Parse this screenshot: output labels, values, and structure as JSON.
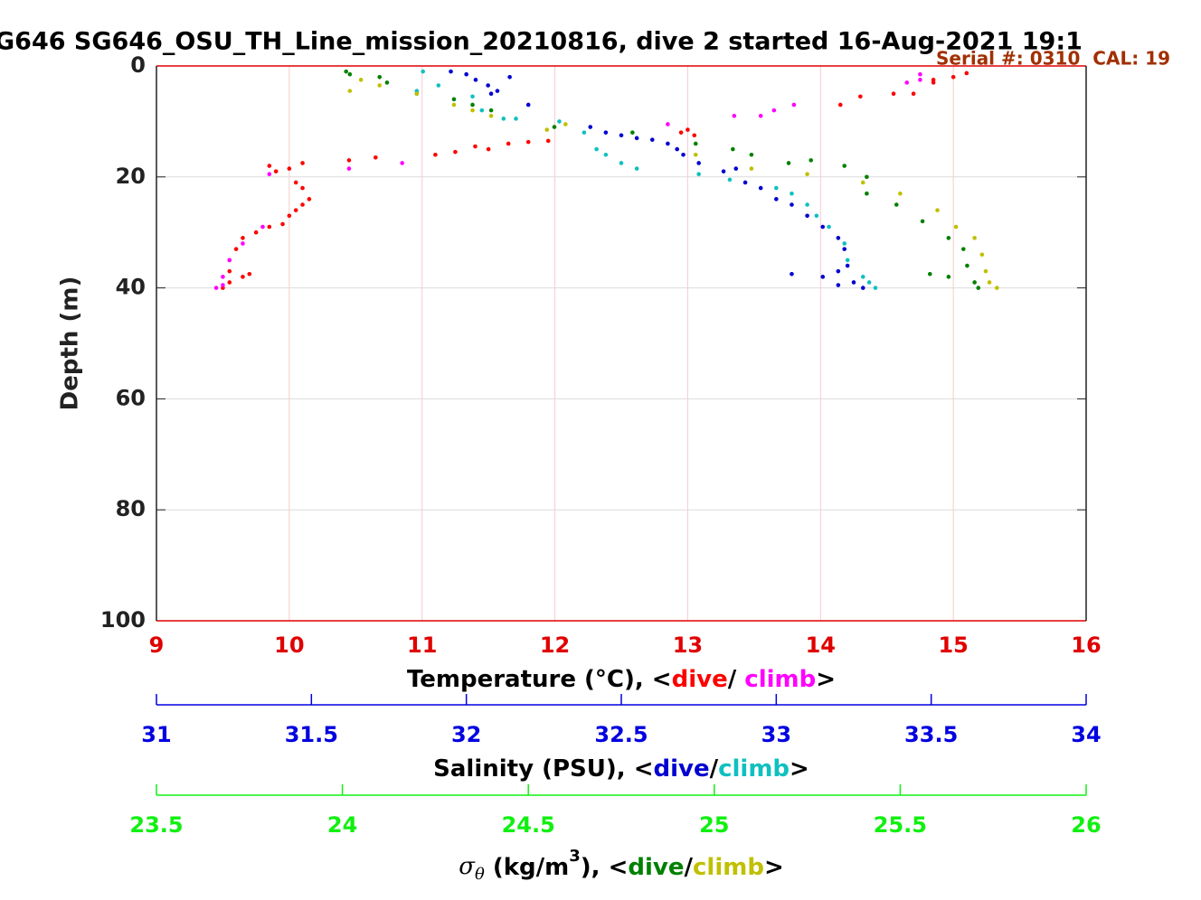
{
  "chart_data": {
    "type": "scatter",
    "title": "G646 SG646_OSU_TH_Line_mission_20210816, dive 2 started 16-Aug-2021 19:1",
    "annotation": "Serial #: 0310  CAL: 19",
    "ylabel": "Depth (m)",
    "ylim": [
      0,
      100
    ],
    "yticks": [
      0,
      20,
      40,
      60,
      80,
      100
    ],
    "y_inverted": true,
    "grid": true,
    "xaxes": [
      {
        "xlabel": [
          "Temperature (°C), <"
        ],
        "separator": "/ ",
        "closing": ">",
        "color": "#e00000",
        "xlim": [
          9,
          16
        ],
        "xticks": [
          9,
          10,
          11,
          12,
          13,
          14,
          15,
          16
        ],
        "series": [
          {
            "name": "dive",
            "color": "#ff0000",
            "x": [
              15.1,
              15.0,
              14.85,
              14.85,
              14.7,
              14.55,
              14.3,
              14.15,
              13.0,
              12.95,
              13.05,
              11.95,
              11.8,
              11.65,
              11.4,
              11.5,
              11.25,
              11.1,
              10.65,
              10.45,
              10.1,
              10.0,
              9.85,
              9.9,
              10.05,
              10.1,
              10.15,
              10.1,
              10.05,
              10.0,
              9.95,
              9.85,
              9.75,
              9.65,
              9.6,
              9.55,
              9.55,
              9.65,
              9.7,
              9.55,
              9.5
            ],
            "y": [
              1.3,
              2,
              2.5,
              3,
              5,
              5,
              5.5,
              7,
              11.5,
              12,
              12.5,
              13.5,
              13.7,
              14,
              14.5,
              15,
              15.5,
              16,
              16.5,
              17,
              17.5,
              18.5,
              18,
              19,
              21,
              22,
              24,
              25,
              26,
              27,
              28.5,
              29,
              30,
              31,
              33,
              35,
              37,
              38,
              37.5,
              39,
              40
            ]
          },
          {
            "name": "climb",
            "color": "#ff00ff",
            "x": [
              14.75,
              14.65,
              14.75,
              13.65,
              13.55,
              13.8,
              13.35,
              12.85,
              10.45,
              10.85,
              9.85,
              9.8,
              9.65,
              9.55,
              9.5,
              9.45,
              9.5
            ],
            "y": [
              1.5,
              3,
              2.5,
              8,
              9,
              7,
              9,
              10.5,
              18.5,
              17.5,
              19.5,
              29,
              32,
              35,
              38,
              40,
              39.5
            ]
          }
        ]
      },
      {
        "xlabel": [
          "Salinity (PSU), <"
        ],
        "separator": "/",
        "closing": ">",
        "color": "#0000e0",
        "xlim": [
          31,
          34
        ],
        "xticks": [
          31,
          31.5,
          32,
          32.5,
          33,
          33.5,
          34
        ],
        "series": [
          {
            "name": "dive",
            "color": "#0000d0",
            "x": [
              31.95,
              32.0,
              32.03,
              32.07,
              32.08,
              32.1,
              32.14,
              32.2,
              32.4,
              32.45,
              32.5,
              32.55,
              32.6,
              32.65,
              32.68,
              32.7,
              32.75,
              32.83,
              32.87,
              32.9,
              32.95,
              33.0,
              33.05,
              33.1,
              33.15,
              33.2,
              33.22,
              33.23,
              33.25,
              33.28,
              33.2,
              33.15,
              33.05,
              33.2
            ],
            "y": [
              1,
              1.5,
              2.5,
              3.5,
              5,
              4.5,
              2,
              7,
              11,
              12,
              12.5,
              13,
              13.3,
              14,
              15,
              16,
              17.5,
              19,
              18.5,
              21,
              22,
              24,
              25,
              27,
              29,
              31,
              33,
              36,
              39,
              40,
              39.5,
              38,
              37.5,
              37
            ]
          },
          {
            "name": "climb",
            "color": "#10c0c0",
            "x": [
              31.86,
              31.91,
              31.84,
              32.02,
              32.05,
              32.12,
              32.16,
              32.3,
              32.38,
              32.42,
              32.45,
              32.5,
              32.55,
              32.75,
              32.85,
              33.0,
              33.05,
              33.1,
              33.13,
              33.17,
              33.22,
              33.23,
              33.28,
              33.3,
              33.32
            ],
            "y": [
              1,
              3.5,
              4.5,
              5.5,
              8,
              9.5,
              9.5,
              10,
              12,
              15,
              16,
              17.5,
              18.5,
              19.5,
              20.5,
              22,
              23,
              25,
              27,
              29,
              32,
              35,
              38,
              39,
              40
            ]
          }
        ]
      },
      {
        "xlabel": [
          "σ",
          "θ",
          " (kg/m",
          "3",
          "), <"
        ],
        "separator": "/",
        "closing": ">",
        "color": "#10f010",
        "xlim": [
          23.5,
          26
        ],
        "xticks": [
          23.5,
          24,
          24.5,
          25,
          25.5,
          26
        ],
        "series": [
          {
            "name": "dive",
            "color": "#008000",
            "x": [
              24.01,
              24.02,
              24.1,
              24.12,
              24.2,
              24.3,
              24.35,
              24.4,
              24.57,
              24.78,
              24.95,
              25.05,
              25.1,
              25.2,
              25.26,
              25.35,
              25.41,
              25.41,
              25.49,
              25.56,
              25.63,
              25.67,
              25.68,
              25.7,
              25.71,
              25.63,
              25.58
            ],
            "y": [
              1,
              1.5,
              2,
              3,
              5,
              6,
              7,
              8,
              11,
              12,
              14,
              15,
              16,
              17.5,
              17,
              18,
              20,
              23,
              25,
              28,
              31,
              33,
              36,
              39,
              40,
              38,
              37.5
            ]
          },
          {
            "name": "climb",
            "color": "#c0c000",
            "x": [
              24.02,
              24.05,
              24.1,
              24.2,
              24.3,
              24.35,
              24.4,
              24.55,
              24.6,
              24.95,
              25.1,
              25.25,
              25.4,
              25.5,
              25.6,
              25.65,
              25.7,
              25.72,
              25.73,
              25.74,
              25.76
            ],
            "y": [
              4.5,
              2.5,
              3.5,
              5,
              7,
              8,
              9,
              11.5,
              10.5,
              16,
              18.5,
              19.5,
              21,
              23,
              26,
              29,
              31,
              34,
              37,
              39,
              40
            ]
          }
        ]
      }
    ]
  }
}
